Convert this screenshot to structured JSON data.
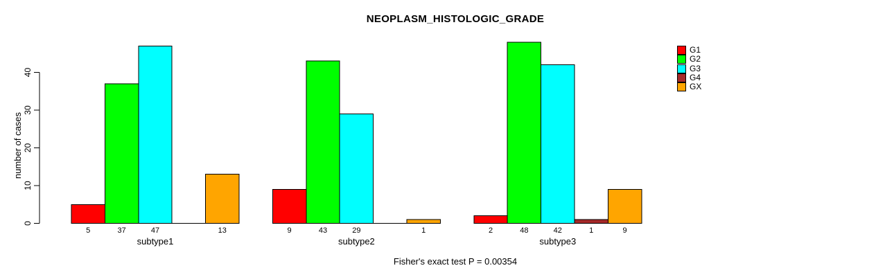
{
  "chart_data": {
    "type": "bar",
    "title": "NEOPLASM_HISTOLOGIC_GRADE",
    "xlabel": "",
    "ylabel": "number of cases",
    "annotation": "Fisher's exact test P = 0.00354",
    "categories": [
      "subtype1",
      "subtype2",
      "subtype3"
    ],
    "series": [
      {
        "name": "G1",
        "color": "#FF0000",
        "values": [
          5,
          9,
          2
        ]
      },
      {
        "name": "G2",
        "color": "#00FF00",
        "values": [
          37,
          43,
          48
        ]
      },
      {
        "name": "G3",
        "color": "#00FFFF",
        "values": [
          47,
          29,
          42
        ]
      },
      {
        "name": "G4",
        "color": "#A52A2A",
        "values": [
          0,
          0,
          1
        ]
      },
      {
        "name": "GX",
        "color": "#FFA500",
        "values": [
          13,
          1,
          9
        ]
      }
    ],
    "ylim": [
      0,
      48
    ],
    "yticks": [
      0,
      10,
      20,
      30,
      40
    ],
    "grid": false,
    "legend_position": "top-right",
    "bar_value_labels": true,
    "zero_value_labels_hidden": true,
    "bar_border_color": "#000000",
    "axis_color": "#000000",
    "background_color": "#FFFFFF",
    "text_color": "#000000"
  }
}
